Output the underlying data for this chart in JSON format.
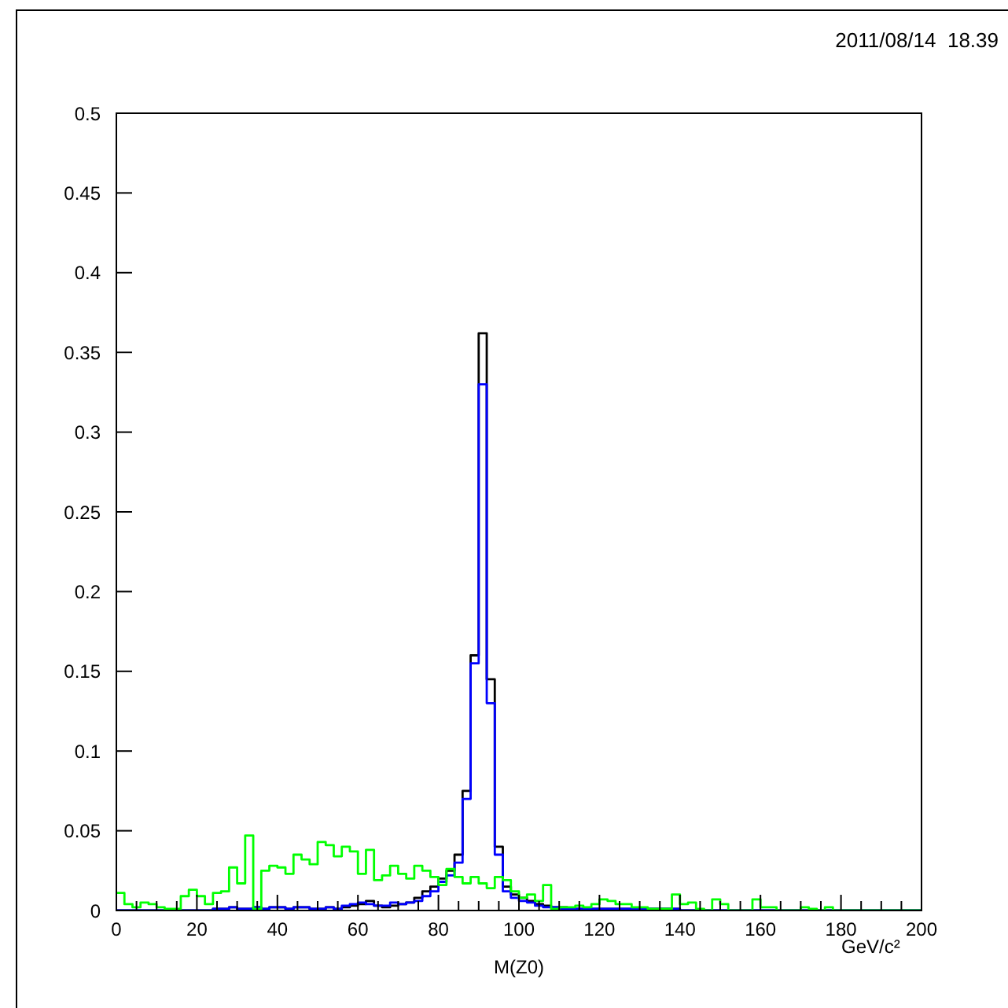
{
  "chart_data": {
    "type": "histogram",
    "xlabel": "M(Z0)",
    "annotations": [
      "2011/08/14  18.39",
      "GeV/c²"
    ],
    "bins": [
      0,
      2,
      4,
      6,
      8,
      10,
      12,
      14,
      16,
      18,
      20,
      22,
      24,
      26,
      28,
      30,
      32,
      34,
      36,
      38,
      40,
      42,
      44,
      46,
      48,
      50,
      52,
      54,
      56,
      58,
      60,
      62,
      64,
      66,
      68,
      70,
      72,
      74,
      76,
      78,
      80,
      82,
      84,
      86,
      88,
      90,
      92,
      94,
      96,
      98,
      100,
      102,
      104,
      106,
      108,
      110,
      112,
      114,
      116,
      118,
      120,
      122,
      124,
      126,
      128,
      130,
      132,
      134,
      136,
      138,
      140,
      142,
      144,
      146,
      148,
      150,
      152,
      154,
      156,
      158,
      160,
      162,
      164,
      166,
      168,
      170,
      172,
      174,
      176,
      178,
      180,
      182,
      184,
      186,
      188,
      190,
      192,
      194,
      196,
      198,
      200
    ],
    "series": [
      {
        "color": "#000000",
        "values": [
          0,
          0,
          0,
          0,
          0,
          0,
          0,
          0,
          0,
          0,
          0,
          0,
          0.001,
          0.001,
          0.002,
          0.001,
          0.001,
          0.002,
          0.001,
          0.002,
          0.002,
          0.001,
          0.002,
          0.002,
          0.001,
          0.001,
          0.002,
          0.001,
          0.002,
          0.003,
          0.004,
          0.006,
          0.003,
          0.002,
          0.003,
          0.004,
          0.005,
          0.008,
          0.012,
          0.015,
          0.02,
          0.025,
          0.035,
          0.075,
          0.16,
          0.362,
          0.145,
          0.04,
          0.015,
          0.01,
          0.008,
          0.006,
          0.004,
          0.003,
          0.002,
          0.002,
          0.001,
          0.001,
          0.001,
          0.001,
          0.001,
          0.001,
          0.001,
          0.001,
          0.001,
          0.001,
          0.001,
          0.001,
          0.001,
          0.001,
          0,
          0,
          0,
          0,
          0,
          0,
          0,
          0,
          0,
          0,
          0,
          0,
          0,
          0,
          0,
          0,
          0,
          0,
          0,
          0,
          0,
          0,
          0,
          0,
          0,
          0,
          0,
          0,
          0,
          0
        ]
      },
      {
        "color": "#0000ff",
        "values": [
          0,
          0,
          0,
          0,
          0,
          0,
          0,
          0,
          0,
          0,
          0,
          0,
          0.001,
          0.001,
          0.002,
          0.001,
          0.001,
          0.002,
          0.001,
          0.002,
          0.002,
          0.001,
          0.002,
          0.002,
          0.001,
          0.001,
          0.002,
          0.001,
          0.003,
          0.004,
          0.005,
          0.004,
          0.003,
          0.003,
          0.005,
          0.004,
          0.005,
          0.006,
          0.009,
          0.012,
          0.018,
          0.022,
          0.03,
          0.07,
          0.155,
          0.33,
          0.13,
          0.035,
          0.012,
          0.008,
          0.006,
          0.005,
          0.003,
          0.002,
          0.002,
          0.001,
          0.001,
          0.001,
          0.001,
          0.001,
          0.001,
          0.001,
          0.001,
          0.001,
          0.001,
          0.001,
          0.001,
          0.001,
          0.001,
          0.001,
          0,
          0,
          0,
          0,
          0,
          0,
          0,
          0,
          0,
          0,
          0,
          0,
          0,
          0,
          0,
          0,
          0,
          0,
          0,
          0,
          0,
          0,
          0,
          0,
          0,
          0,
          0,
          0,
          0,
          0
        ]
      },
      {
        "color": "#00ff00",
        "values": [
          0.011,
          0.004,
          0.002,
          0.005,
          0.004,
          0.002,
          0.001,
          0.001,
          0.009,
          0.013,
          0.009,
          0.004,
          0.011,
          0.012,
          0.027,
          0.017,
          0.047,
          0.001,
          0.025,
          0.028,
          0.027,
          0.023,
          0.035,
          0.032,
          0.029,
          0.043,
          0.041,
          0.034,
          0.04,
          0.037,
          0.023,
          0.038,
          0.019,
          0.022,
          0.028,
          0.023,
          0.02,
          0.028,
          0.025,
          0.021,
          0.016,
          0.026,
          0.021,
          0.017,
          0.021,
          0.017,
          0.014,
          0.021,
          0.019,
          0.012,
          0.008,
          0.01,
          0.006,
          0.016,
          0.001,
          0.002,
          0.002,
          0.003,
          0.002,
          0.004,
          0.007,
          0.006,
          0.004,
          0.004,
          0.002,
          0.002,
          0.001,
          0.001,
          0.001,
          0.01,
          0.004,
          0.005,
          0.001,
          0,
          0.007,
          0.004,
          0,
          0,
          0,
          0.007,
          0.002,
          0.002,
          0,
          0,
          0,
          0.002,
          0.001,
          0,
          0.002,
          0,
          0,
          0,
          0,
          0,
          0,
          0,
          0,
          0,
          0,
          0
        ]
      }
    ],
    "xlim": [
      0,
      200
    ],
    "ylim": [
      0,
      0.5
    ],
    "xticks": [
      0,
      {
        "value": 5,
        "label": null
      },
      {
        "value": 10,
        "label": null
      },
      {
        "value": 15,
        "label": null
      },
      20,
      {
        "value": 25,
        "label": null
      },
      {
        "value": 30,
        "label": null
      },
      {
        "value": 35,
        "label": null
      },
      40,
      {
        "value": 45,
        "label": null
      },
      {
        "value": 50,
        "label": null
      },
      {
        "value": 55,
        "label": null
      },
      60,
      {
        "value": 65,
        "label": null
      },
      {
        "value": 70,
        "label": null
      },
      {
        "value": 75,
        "label": null
      },
      80,
      {
        "value": 85,
        "label": null
      },
      {
        "value": 90,
        "label": null
      },
      {
        "value": 95,
        "label": null
      },
      100,
      {
        "value": 105,
        "label": null
      },
      {
        "value": 110,
        "label": null
      },
      {
        "value": 115,
        "label": null
      },
      120,
      {
        "value": 125,
        "label": null
      },
      {
        "value": 130,
        "label": null
      },
      {
        "value": 135,
        "label": null
      },
      140,
      {
        "value": 145,
        "label": null
      },
      {
        "value": 150,
        "label": null
      },
      {
        "value": 155,
        "label": null
      },
      160,
      {
        "value": 165,
        "label": null
      },
      {
        "value": 170,
        "label": null
      },
      {
        "value": 175,
        "label": null
      },
      180,
      {
        "value": 185,
        "label": null
      },
      {
        "value": 190,
        "label": null
      },
      {
        "value": 195,
        "label": null
      },
      200
    ],
    "yticks": [
      0,
      0.05,
      0.1,
      0.15,
      0.2,
      0.25,
      0.3,
      0.35,
      0.4,
      0.45,
      0.5
    ],
    "grid": false,
    "legend": false
  }
}
